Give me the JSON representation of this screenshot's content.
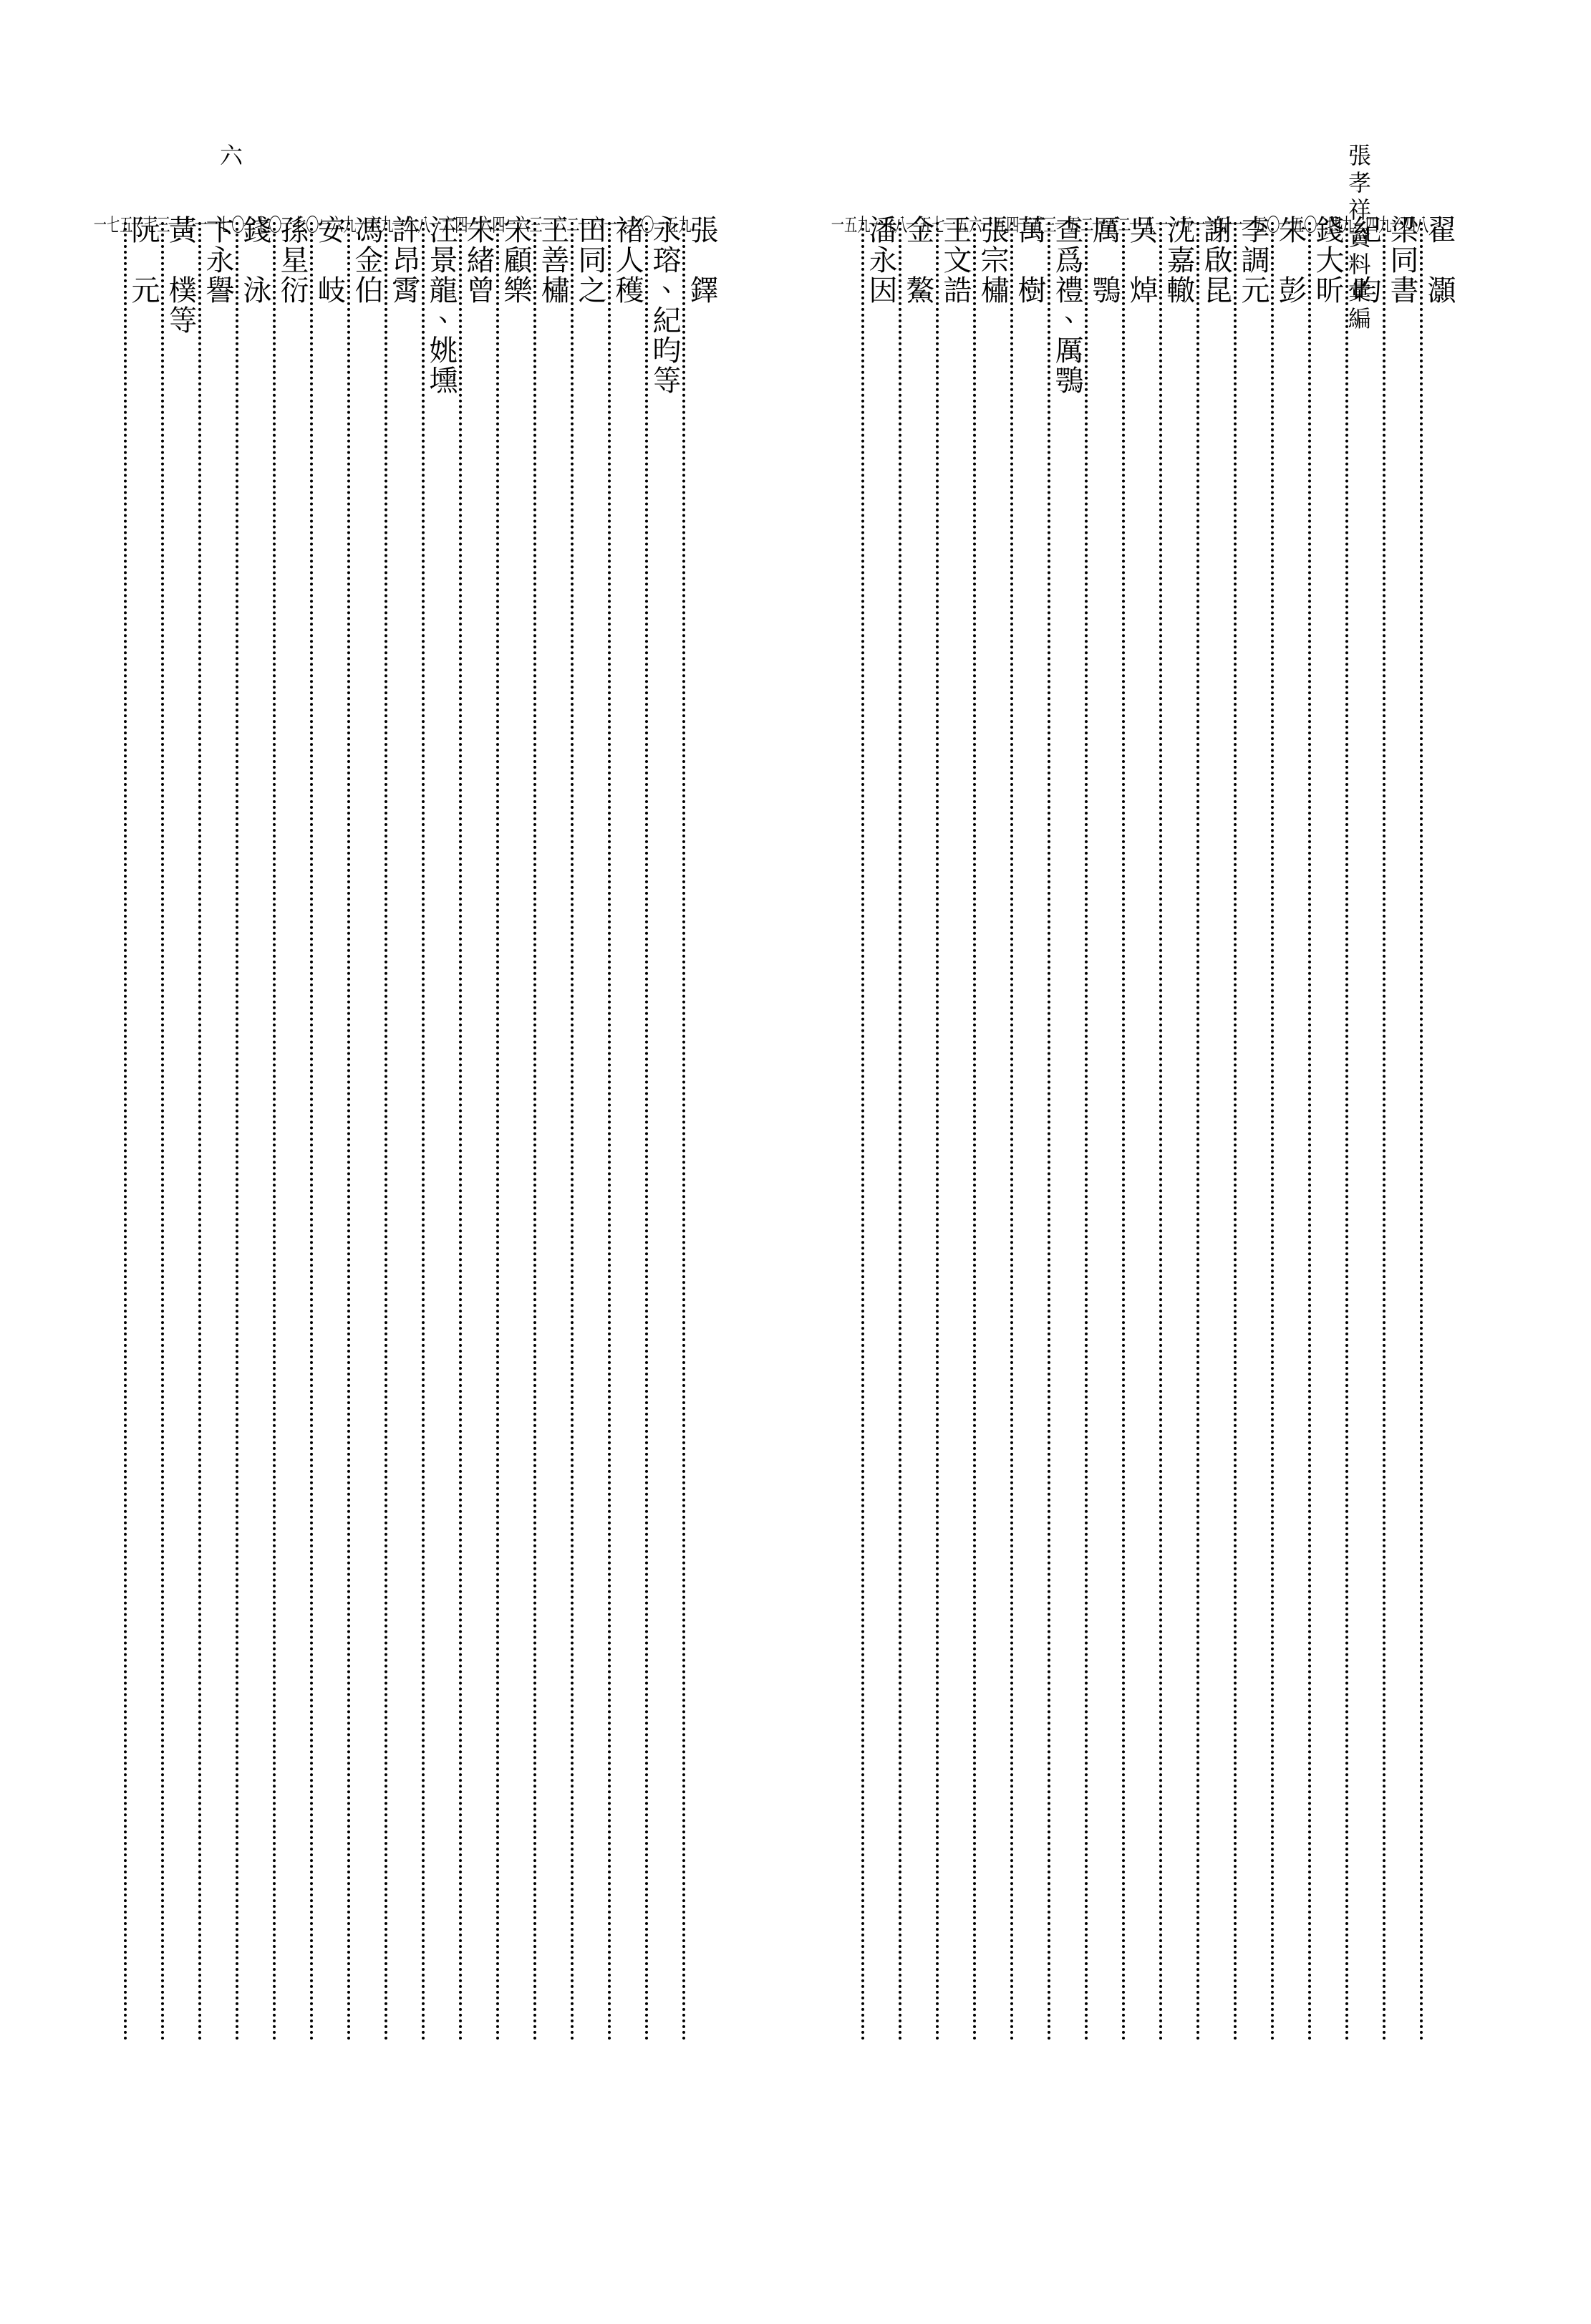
{
  "running_head": "張孝祥資料彙編",
  "page_number": "六",
  "right_block": [
    {
      "name": "翟　灝",
      "page": "一四八"
    },
    {
      "name": "梁同書",
      "page": "一四九"
    },
    {
      "name": "紀　昀",
      "page": "一四九"
    },
    {
      "name": "錢大昕",
      "page": "一五〇"
    },
    {
      "name": "朱　彭",
      "page": "一五〇"
    },
    {
      "name": "李調元",
      "page": "一五一"
    },
    {
      "name": "謝啟昆",
      "page": "一五一"
    },
    {
      "name": "沈嘉轍",
      "page": "一五一"
    },
    {
      "name": "吳　焯",
      "page": "一五二"
    },
    {
      "name": "厲　鶚",
      "page": "一五二"
    },
    {
      "name": "查爲禮、厲鶚",
      "page": "一五三"
    },
    {
      "name": "萬　樹",
      "page": "一五四"
    },
    {
      "name": "張宗橚",
      "page": "一五六"
    },
    {
      "name": "王文誥",
      "page": "一五七"
    },
    {
      "name": "金　鰲",
      "page": "一五八"
    },
    {
      "name": "潘永因",
      "page": "一五九"
    }
  ],
  "left_block": [
    {
      "name": "張　鐸",
      "page": "一五九"
    },
    {
      "name": "永瑢、紀昀等",
      "page": "一六〇"
    },
    {
      "name": "褚人穫",
      "page": "一六一"
    },
    {
      "name": "田同之",
      "page": "一六二"
    },
    {
      "name": "王善橚",
      "page": "一六三"
    },
    {
      "name": "宋顧樂",
      "page": "一六四"
    },
    {
      "name": "朱緒曾",
      "page": "一六四"
    },
    {
      "name": "汪景龍、姚壎",
      "page": "一六八"
    },
    {
      "name": "許昂霄",
      "page": "一六九"
    },
    {
      "name": "馮金伯",
      "page": "一六九"
    },
    {
      "name": "安　岐",
      "page": "一七〇"
    },
    {
      "name": "孫星衍",
      "page": "一七〇"
    },
    {
      "name": "錢　泳",
      "page": "一七〇"
    },
    {
      "name": "卞永譽",
      "page": "一七一"
    },
    {
      "name": "黃　樸等",
      "page": "一七三"
    },
    {
      "name": "阮　元",
      "page": "一七五"
    }
  ]
}
